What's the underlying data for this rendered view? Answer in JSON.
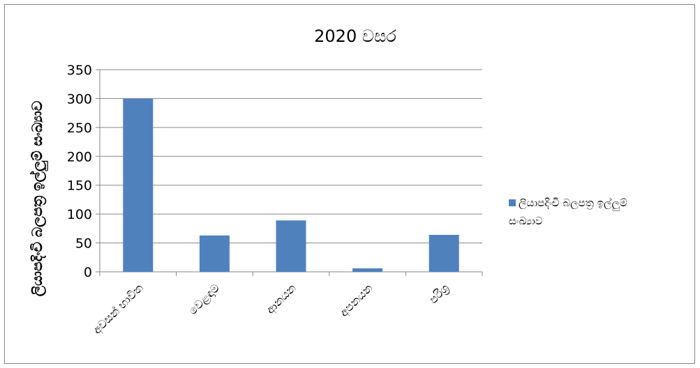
{
  "chart_data": {
    "type": "bar",
    "title": "2020 වසර",
    "xlabel": "",
    "ylabel": "ලියාපදිංචි බලපත්‍ර ඉල්ලුම් සංඛ්‍යාව",
    "categories": [
      "අවසන් භාවිත",
      "වෙළඳාම",
      "ආනයන",
      "අපනයන",
      "පරිශ්‍ර"
    ],
    "series": [
      {
        "name": "ලියාපදිංචි බලපත්‍ර ඉල්ලුම් සංඛ්‍යාව",
        "values": [
          300,
          63,
          89,
          6,
          64
        ]
      }
    ],
    "ylim": [
      0,
      350
    ],
    "yticks": [
      0,
      50,
      100,
      150,
      200,
      250,
      300,
      350
    ],
    "grid": true,
    "legend_position": "right"
  },
  "colors": {
    "bar": "#4f81bd",
    "grid": "#868686",
    "frame": "#868686"
  }
}
